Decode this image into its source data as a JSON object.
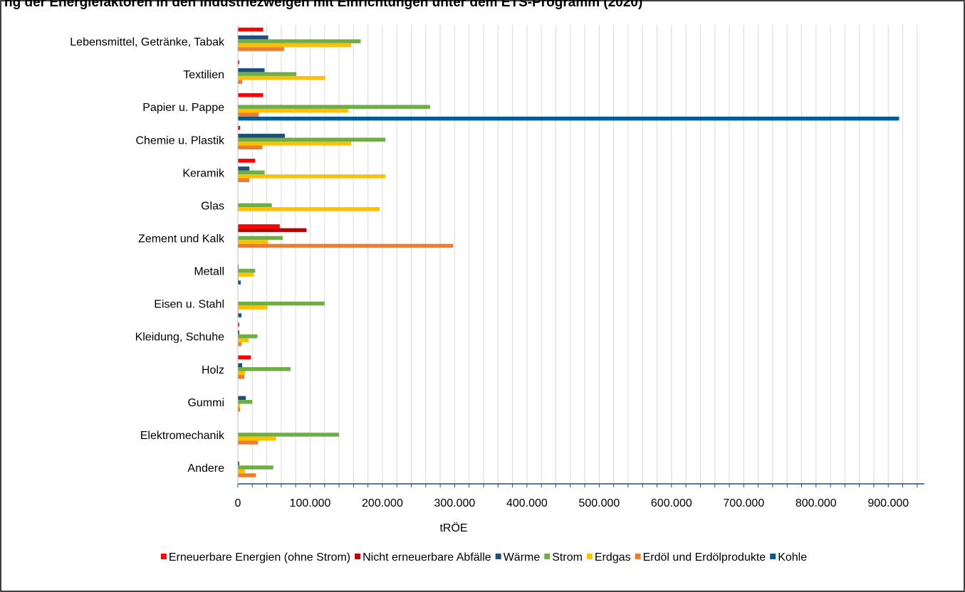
{
  "chart_data": {
    "type": "bar",
    "orientation": "horizontal",
    "title": "ng der Energiefaktoren in den Industriezweigen mit Einrichtungen unter dem ETS-Programm (2020)",
    "xlabel": "tRÖE",
    "ylabel": "",
    "xlim": [
      0,
      950000
    ],
    "xticks": [
      "0",
      "100.000",
      "200.000",
      "300.000",
      "400.000",
      "500.000",
      "600.000",
      "700.000",
      "800.000",
      "900.000"
    ],
    "grid": true,
    "legend_position": "bottom",
    "categories": [
      "Lebensmittel, Getränke, Tabak",
      "Textilien",
      "Papier u. Pappe",
      "Chemie u. Plastik",
      "Keramik",
      "Glas",
      "Zement und Kalk",
      "Metall",
      "Eisen u. Stahl",
      "Kleidung, Schuhe",
      "Holz",
      "Gummi",
      "Elektromechanik",
      "Andere"
    ],
    "series": [
      {
        "name": "Erneuerbare Energien (ohne Strom)",
        "color": "#ff0000",
        "values": [
          35000,
          2000,
          35000,
          3000,
          24000,
          0,
          58000,
          0,
          0,
          2000,
          18000,
          0,
          0,
          0
        ]
      },
      {
        "name": "Nicht erneuerbare Abfälle",
        "color": "#c00000",
        "values": [
          0,
          0,
          0,
          0,
          0,
          0,
          95000,
          0,
          0,
          0,
          0,
          0,
          0,
          0
        ]
      },
      {
        "name": "Wärme",
        "color": "#1f4e79",
        "values": [
          42000,
          37000,
          0,
          65000,
          16000,
          0,
          0,
          1000,
          0,
          2000,
          6000,
          11000,
          0,
          2000
        ]
      },
      {
        "name": "Strom",
        "color": "#70ad47",
        "values": [
          170000,
          81000,
          266000,
          204000,
          37000,
          47000,
          62000,
          24000,
          120000,
          27000,
          73000,
          20000,
          140000,
          49000
        ]
      },
      {
        "name": "Erdgas",
        "color": "#ffc000",
        "values": [
          157000,
          121000,
          153000,
          157000,
          204000,
          196000,
          42000,
          22000,
          41000,
          15000,
          10000,
          3000,
          53000,
          10000
        ]
      },
      {
        "name": "Erdöl und Erdölprodukte",
        "color": "#ed7d31",
        "values": [
          64000,
          6000,
          29000,
          34000,
          16000,
          0,
          298000,
          1000,
          1000,
          5000,
          9000,
          3000,
          28000,
          25000
        ]
      },
      {
        "name": "Kohle",
        "color": "#005b96",
        "values": [
          0,
          0,
          915000,
          0,
          0,
          0,
          0,
          4000,
          5000,
          0,
          0,
          0,
          0,
          0
        ]
      }
    ]
  }
}
